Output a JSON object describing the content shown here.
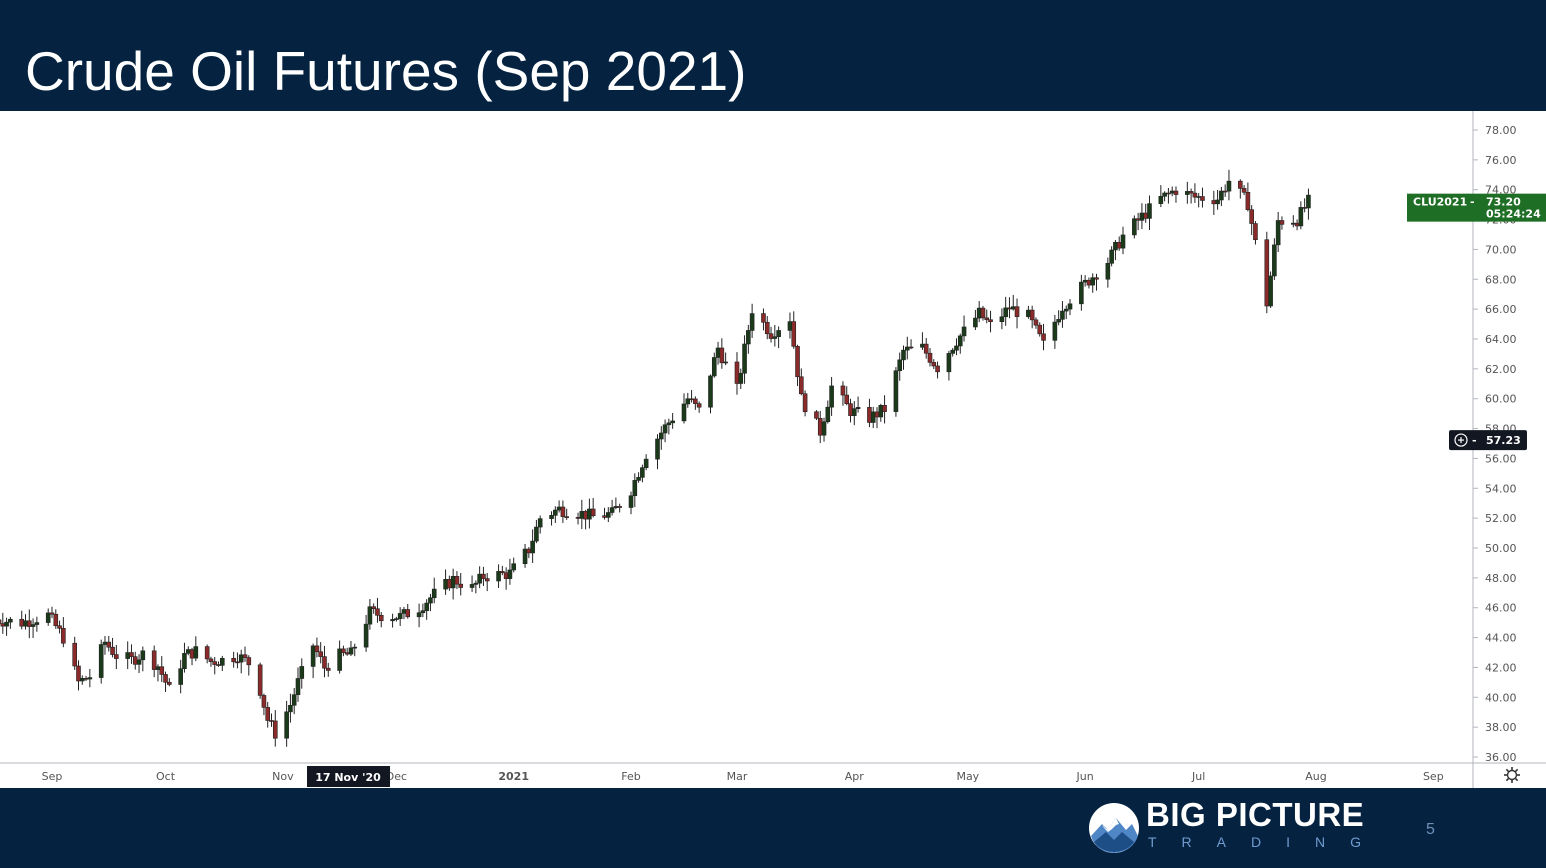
{
  "title": "Crude Oil Futures (Sep 2021)",
  "footer": {
    "brand": "BIG PICTURE",
    "brand_sub": "TRADING",
    "page_number": "5"
  },
  "colors": {
    "header_bg": "#052340",
    "up_candle": "#1a3a1a",
    "down_candle": "#8b2a2a",
    "price_tag_bg": "#1f6e25",
    "crosshair_tag_bg": "#131722"
  },
  "chart_data": {
    "type": "candlestick",
    "symbol": "CLU2021",
    "last_price": "73.20",
    "countdown": "05:24:24",
    "crosshair_price": "57.23",
    "crosshair_date": "17 Nov '20",
    "ylim": [
      35,
      79
    ],
    "y_ticks": [
      "78.00",
      "76.00",
      "74.00",
      "72.00",
      "70.00",
      "68.00",
      "66.00",
      "64.00",
      "62.00",
      "60.00",
      "58.00",
      "56.00",
      "54.00",
      "52.00",
      "50.00",
      "48.00",
      "46.00",
      "44.00",
      "42.00",
      "40.00",
      "38.00",
      "36.00"
    ],
    "x_ticks": [
      {
        "label": "Sep",
        "date": "2020-09-01"
      },
      {
        "label": "Oct",
        "date": "2020-10-01"
      },
      {
        "label": "Nov",
        "date": "2020-11-01"
      },
      {
        "label": "Dec",
        "date": "2020-12-01"
      },
      {
        "label": "2021",
        "date": "2021-01-01"
      },
      {
        "label": "Feb",
        "date": "2021-02-01"
      },
      {
        "label": "Mar",
        "date": "2021-03-01"
      },
      {
        "label": "Apr",
        "date": "2021-04-01"
      },
      {
        "label": "May",
        "date": "2021-05-01"
      },
      {
        "label": "Jun",
        "date": "2021-06-01"
      },
      {
        "label": "Jul",
        "date": "2021-07-01"
      },
      {
        "label": "Aug",
        "date": "2021-08-01"
      },
      {
        "label": "Sep",
        "date": "2021-09-01"
      }
    ],
    "closes": [
      {
        "date": "2020-08-17",
        "close": 45.2
      },
      {
        "date": "2020-08-24",
        "close": 45.0
      },
      {
        "date": "2020-08-31",
        "close": 45.5
      },
      {
        "date": "2020-09-04",
        "close": 44.0
      },
      {
        "date": "2020-09-08",
        "close": 41.0
      },
      {
        "date": "2020-09-11",
        "close": 41.4
      },
      {
        "date": "2020-09-15",
        "close": 43.7
      },
      {
        "date": "2020-09-18",
        "close": 42.8
      },
      {
        "date": "2020-09-22",
        "close": 42.5
      },
      {
        "date": "2020-09-25",
        "close": 42.9
      },
      {
        "date": "2020-09-29",
        "close": 42.1
      },
      {
        "date": "2020-10-02",
        "close": 40.5
      },
      {
        "date": "2020-10-06",
        "close": 42.8
      },
      {
        "date": "2020-10-09",
        "close": 43.1
      },
      {
        "date": "2020-10-13",
        "close": 42.4
      },
      {
        "date": "2020-10-16",
        "close": 42.5
      },
      {
        "date": "2020-10-20",
        "close": 42.8
      },
      {
        "date": "2020-10-23",
        "close": 42.3
      },
      {
        "date": "2020-10-26",
        "close": 40.5
      },
      {
        "date": "2020-10-28",
        "close": 38.5
      },
      {
        "date": "2020-10-30",
        "close": 37.6
      },
      {
        "date": "2020-11-03",
        "close": 39.5
      },
      {
        "date": "2020-11-05",
        "close": 41.0
      },
      {
        "date": "2020-11-09",
        "close": 43.5
      },
      {
        "date": "2020-11-12",
        "close": 42.0
      },
      {
        "date": "2020-11-16",
        "close": 42.8
      },
      {
        "date": "2020-11-19",
        "close": 42.9
      },
      {
        "date": "2020-11-24",
        "close": 45.7
      },
      {
        "date": "2020-11-27",
        "close": 45.5
      },
      {
        "date": "2020-12-02",
        "close": 45.4
      },
      {
        "date": "2020-12-07",
        "close": 46.0
      },
      {
        "date": "2020-12-11",
        "close": 46.9
      },
      {
        "date": "2020-12-16",
        "close": 47.9
      },
      {
        "date": "2020-12-21",
        "close": 47.3
      },
      {
        "date": "2020-12-24",
        "close": 48.1
      },
      {
        "date": "2020-12-31",
        "close": 48.3
      },
      {
        "date": "2021-01-05",
        "close": 49.9
      },
      {
        "date": "2021-01-08",
        "close": 52.0
      },
      {
        "date": "2021-01-13",
        "close": 52.6
      },
      {
        "date": "2021-01-19",
        "close": 52.3
      },
      {
        "date": "2021-01-22",
        "close": 52.1
      },
      {
        "date": "2021-01-27",
        "close": 52.3
      },
      {
        "date": "2021-02-01",
        "close": 53.9
      },
      {
        "date": "2021-02-05",
        "close": 56.3
      },
      {
        "date": "2021-02-10",
        "close": 58.1
      },
      {
        "date": "2021-02-16",
        "close": 60.0
      },
      {
        "date": "2021-02-19",
        "close": 59.2
      },
      {
        "date": "2021-02-24",
        "close": 63.4
      },
      {
        "date": "2021-03-01",
        "close": 60.6
      },
      {
        "date": "2021-03-05",
        "close": 66.0
      },
      {
        "date": "2021-03-10",
        "close": 64.4
      },
      {
        "date": "2021-03-15",
        "close": 65.4
      },
      {
        "date": "2021-03-18",
        "close": 60.0
      },
      {
        "date": "2021-03-23",
        "close": 57.8
      },
      {
        "date": "2021-03-26",
        "close": 60.8
      },
      {
        "date": "2021-03-31",
        "close": 59.2
      },
      {
        "date": "2021-04-05",
        "close": 58.7
      },
      {
        "date": "2021-04-09",
        "close": 59.3
      },
      {
        "date": "2021-04-14",
        "close": 63.2
      },
      {
        "date": "2021-04-19",
        "close": 63.4
      },
      {
        "date": "2021-04-23",
        "close": 62.1
      },
      {
        "date": "2021-04-28",
        "close": 63.9
      },
      {
        "date": "2021-05-04",
        "close": 65.7
      },
      {
        "date": "2021-05-07",
        "close": 64.9
      },
      {
        "date": "2021-05-12",
        "close": 66.1
      },
      {
        "date": "2021-05-17",
        "close": 65.5
      },
      {
        "date": "2021-05-21",
        "close": 63.6
      },
      {
        "date": "2021-05-26",
        "close": 66.2
      },
      {
        "date": "2021-06-01",
        "close": 67.7
      },
      {
        "date": "2021-06-07",
        "close": 69.2
      },
      {
        "date": "2021-06-11",
        "close": 70.9
      },
      {
        "date": "2021-06-16",
        "close": 72.2
      },
      {
        "date": "2021-06-21",
        "close": 73.4
      },
      {
        "date": "2021-06-25",
        "close": 74.0
      },
      {
        "date": "2021-06-30",
        "close": 73.5
      },
      {
        "date": "2021-07-06",
        "close": 73.4
      },
      {
        "date": "2021-07-09",
        "close": 74.6
      },
      {
        "date": "2021-07-14",
        "close": 73.1
      },
      {
        "date": "2021-07-19",
        "close": 66.4
      },
      {
        "date": "2021-07-22",
        "close": 71.9
      },
      {
        "date": "2021-07-27",
        "close": 72.0
      },
      {
        "date": "2021-07-30",
        "close": 73.2
      }
    ]
  }
}
